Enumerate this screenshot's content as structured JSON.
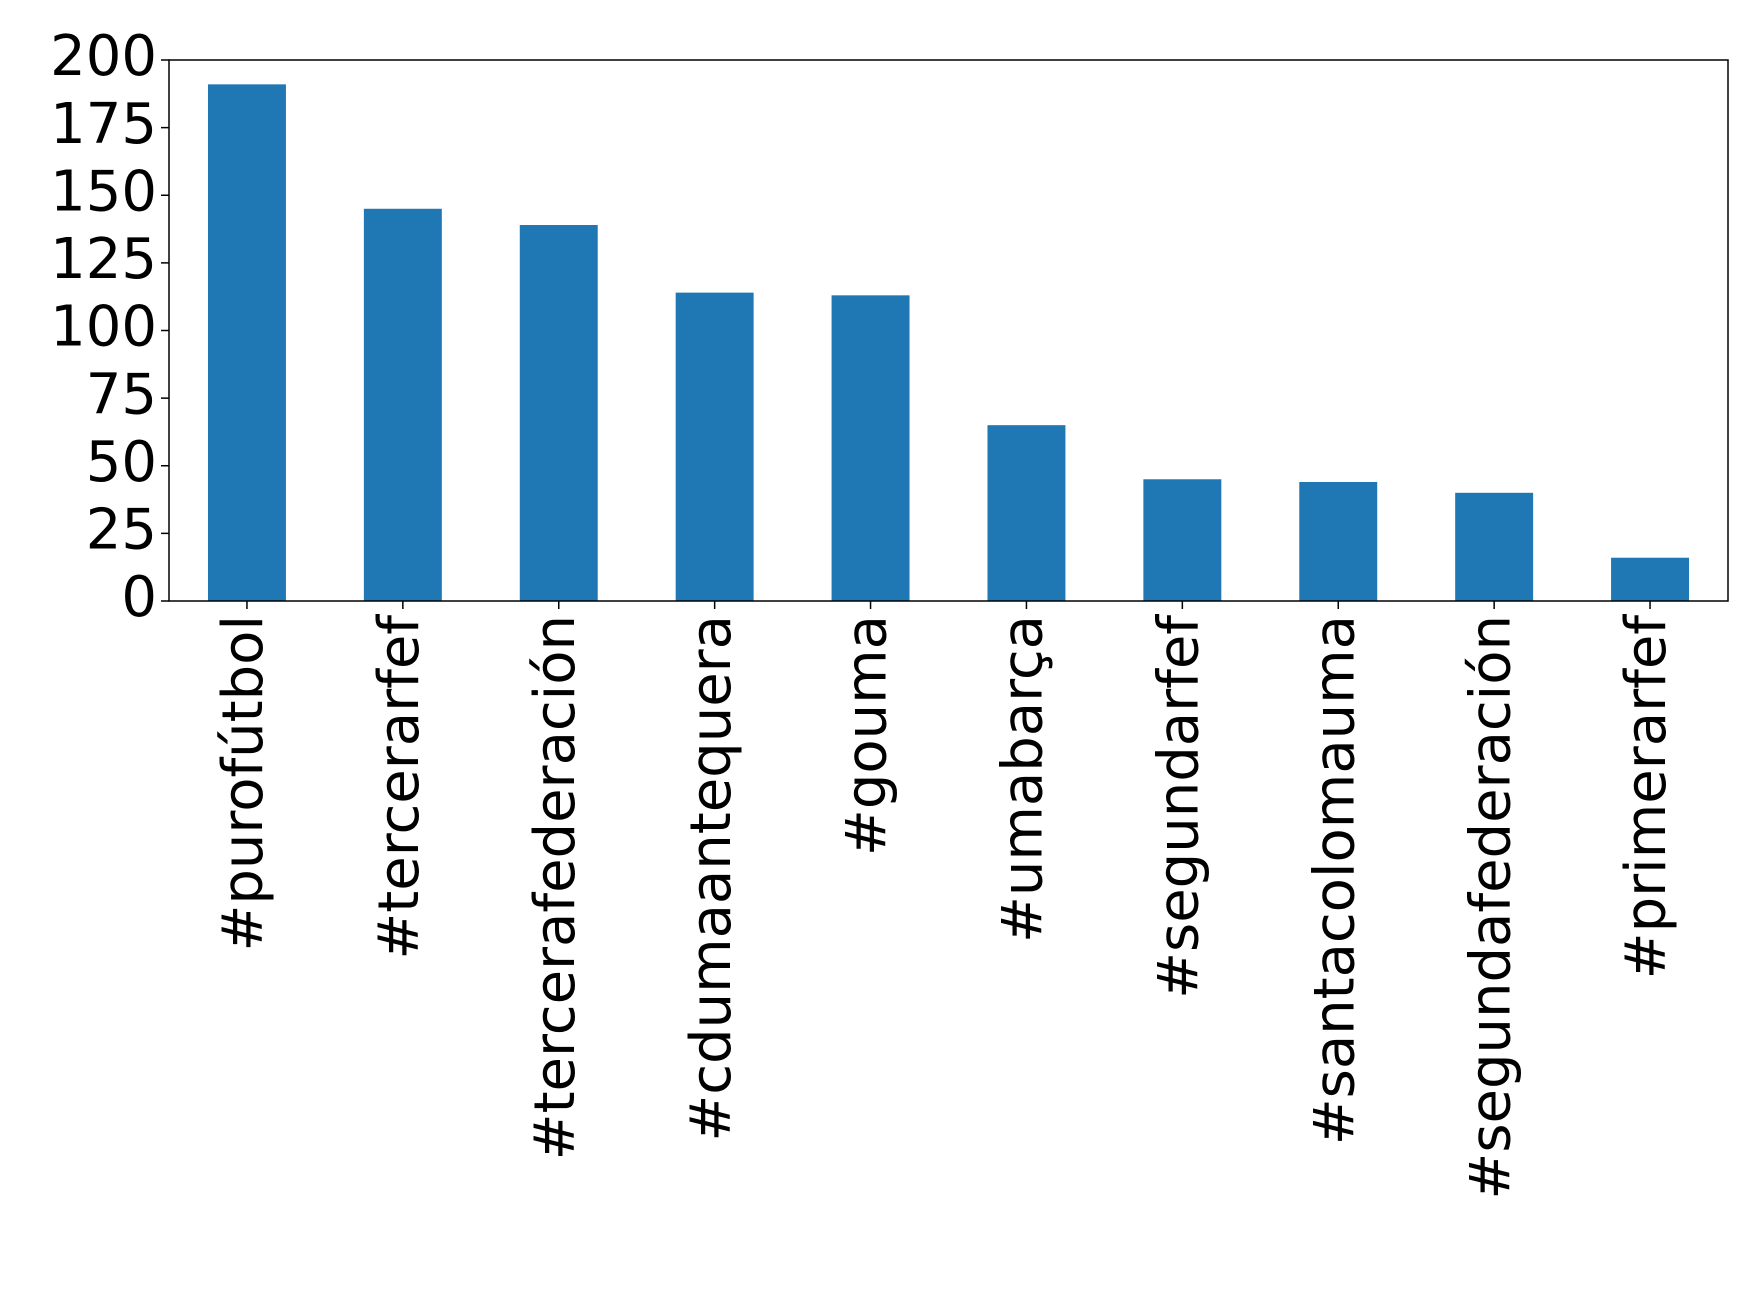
{
  "chart_data": {
    "type": "bar",
    "categories": [
      "#purofútbol",
      "#tercerarfef",
      "#tercerafederación",
      "#cdumaantequera",
      "#gouma",
      "#umabarça",
      "#segundarfef",
      "#santacolomauma",
      "#segundafederación",
      "#primerarfef"
    ],
    "values": [
      191,
      145,
      139,
      114,
      113,
      65,
      45,
      44,
      40,
      16
    ],
    "color": "#1f77b4",
    "ylim": [
      0,
      200
    ],
    "yticks": [
      0,
      25,
      50,
      75,
      100,
      125,
      150,
      175,
      200
    ],
    "grid": false
  }
}
